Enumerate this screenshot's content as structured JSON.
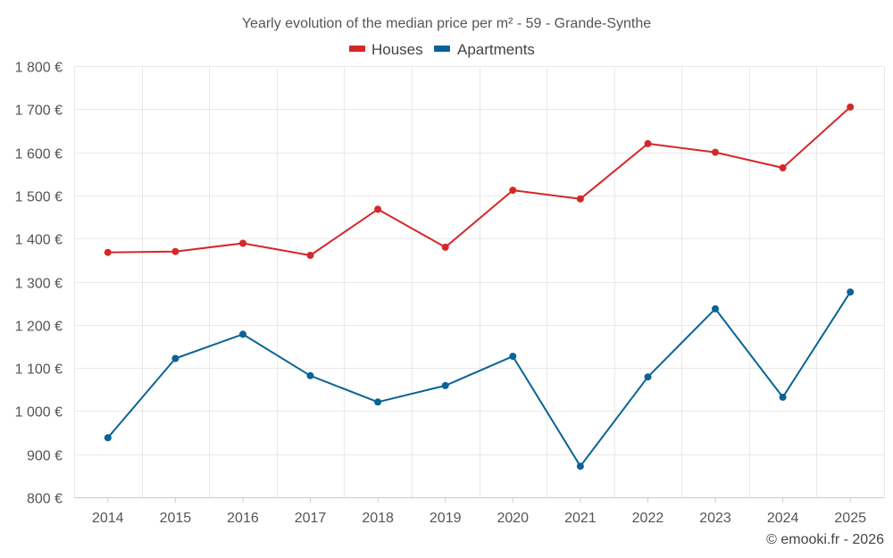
{
  "chart_data": {
    "type": "line",
    "title": "Yearly evolution of the median price per m² - 59 - Grande-Synthe",
    "categories": [
      "2014",
      "2015",
      "2016",
      "2017",
      "2018",
      "2019",
      "2020",
      "2021",
      "2022",
      "2023",
      "2024",
      "2025"
    ],
    "series": [
      {
        "name": "Houses",
        "color": "#d62728",
        "values": [
          1368,
          1370,
          1389,
          1361,
          1468,
          1380,
          1512,
          1492,
          1620,
          1600,
          1564,
          1705
        ]
      },
      {
        "name": "Apartments",
        "color": "#0a6396",
        "values": [
          938,
          1122,
          1178,
          1082,
          1021,
          1059,
          1127,
          872,
          1079,
          1237,
          1032,
          1276
        ]
      }
    ],
    "ylim": [
      800,
      1800
    ],
    "yticks": [
      800,
      900,
      1000,
      1100,
      1200,
      1300,
      1400,
      1500,
      1600,
      1700,
      1800
    ],
    "ytick_labels": [
      "800 €",
      "900 €",
      "1 000 €",
      "1 100 €",
      "1 200 €",
      "1 300 €",
      "1 400 €",
      "1 500 €",
      "1 600 €",
      "1 700 €",
      "1 800 €"
    ],
    "xlabel": "",
    "ylabel": "",
    "grid": true,
    "legend_position": "top-center"
  },
  "credit": "© emooki.fr - 2026"
}
